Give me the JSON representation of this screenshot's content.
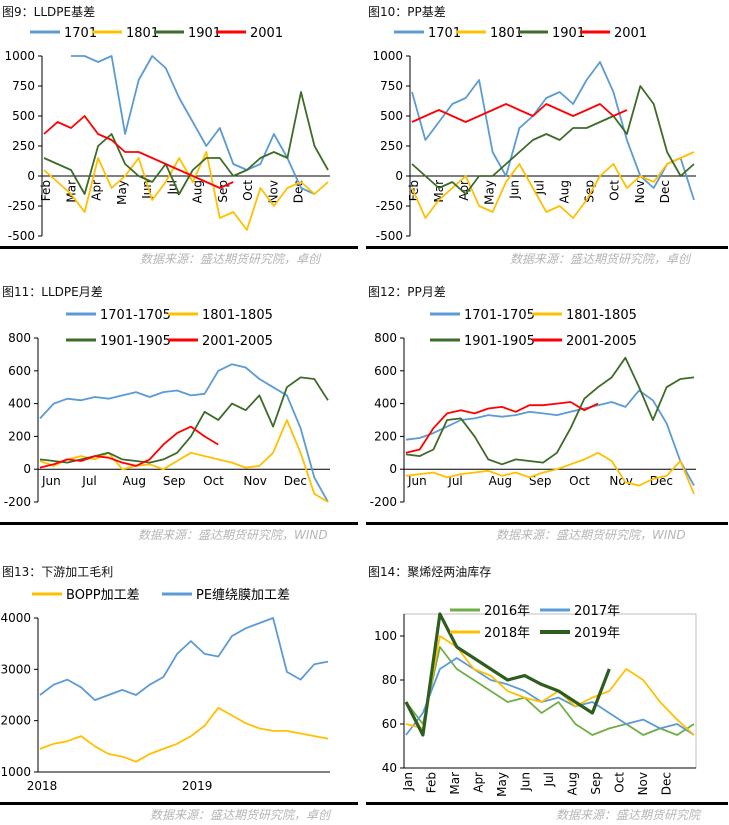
{
  "colors": {
    "blue": "#5b9bd5",
    "yellow": "#ffc000",
    "green": "#3e6b28",
    "red": "#ff0000",
    "lightgreen": "#70ad47",
    "lightblue": "#5b9bd5",
    "darkgreen": "#2e5e1e"
  },
  "panels": [
    {
      "caption": "图9：LLDPE基差",
      "source": "数据来源：盛达期货研究院，卓创"
    },
    {
      "caption": "图10：PP基差",
      "source": "数据来源：盛达期货研究院，卓创"
    },
    {
      "caption": "图11：LLDPE月差",
      "source": "数据来源：盛达期货研究院，WIND"
    },
    {
      "caption": "图12：PP月差",
      "source": "数据来源：盛达期货研究院，WIND"
    },
    {
      "caption": "图13：下游加工毛利",
      "source": "数据来源：盛达期货研究院，卓创"
    },
    {
      "caption": "图14：聚烯烃两油库存",
      "source": "数据来源：盛达期货研究院"
    }
  ],
  "chart_data": [
    {
      "type": "line",
      "ylim": [
        -500,
        1000
      ],
      "yticks": [
        "1000",
        "750",
        "500",
        "250",
        "0",
        "-250",
        "-500"
      ],
      "xticks": [
        "Feb",
        "Mar",
        "Apr",
        "May",
        "Jun",
        "Jul",
        "Aug",
        "Sep",
        "Oct",
        "Nov",
        "Dec"
      ],
      "x_axis_value": 0,
      "legend_rows": [
        [
          "1701",
          "1801",
          "1901",
          "2001"
        ]
      ],
      "series": [
        {
          "name": "1701",
          "values": [
            null,
            null,
            1000,
            1000,
            950,
            1000,
            350,
            800,
            1000,
            900,
            650,
            450,
            250,
            400,
            100,
            50,
            100,
            350,
            150,
            -100,
            -150,
            null
          ]
        },
        {
          "name": "1801",
          "values": [
            50,
            -50,
            -150,
            -300,
            150,
            -100,
            0,
            150,
            -200,
            -50,
            150,
            -50,
            200,
            -350,
            -300,
            -450,
            -100,
            -250,
            -100,
            -50,
            -150,
            -50
          ]
        },
        {
          "name": "1901",
          "values": [
            150,
            100,
            50,
            -150,
            250,
            350,
            100,
            0,
            -50,
            100,
            -150,
            50,
            150,
            150,
            0,
            50,
            150,
            200,
            150,
            700,
            250,
            50
          ]
        },
        {
          "name": "2001",
          "values": [
            350,
            450,
            400,
            500,
            350,
            300,
            200,
            200,
            150,
            100,
            50,
            0,
            -50,
            -100,
            -50,
            null,
            null,
            null,
            null,
            null,
            null,
            null
          ]
        }
      ]
    },
    {
      "type": "line",
      "ylim": [
        -500,
        1000
      ],
      "yticks": [
        "1000",
        "750",
        "500",
        "250",
        "0",
        "-250",
        "-500"
      ],
      "xticks": [
        "Feb",
        "Mar",
        "Apr",
        "May",
        "Jun",
        "Jul",
        "Aug",
        "Sep",
        "Oct",
        "Nov",
        "Dec"
      ],
      "x_axis_value": 0,
      "legend_rows": [
        [
          "1701",
          "1801",
          "1901",
          "2001"
        ]
      ],
      "series": [
        {
          "name": "1701",
          "values": [
            700,
            300,
            450,
            600,
            650,
            800,
            200,
            0,
            400,
            500,
            650,
            700,
            600,
            800,
            950,
            700,
            300,
            0,
            -100,
            100,
            150,
            -200
          ]
        },
        {
          "name": "1801",
          "values": [
            -100,
            -350,
            -200,
            -100,
            0,
            -250,
            -300,
            -50,
            100,
            -100,
            -300,
            -250,
            -350,
            -200,
            0,
            100,
            -100,
            0,
            -50,
            100,
            150,
            200
          ]
        },
        {
          "name": "1901",
          "values": [
            100,
            0,
            -100,
            -50,
            -150,
            0,
            0,
            100,
            200,
            300,
            350,
            300,
            400,
            400,
            450,
            500,
            350,
            750,
            600,
            200,
            0,
            100
          ]
        },
        {
          "name": "2001",
          "values": [
            450,
            500,
            550,
            500,
            450,
            500,
            550,
            600,
            550,
            500,
            600,
            550,
            500,
            550,
            600,
            500,
            550,
            null,
            null,
            null,
            null,
            null
          ]
        }
      ]
    },
    {
      "type": "line",
      "ylim": [
        -200,
        800
      ],
      "yticks": [
        "800",
        "600",
        "400",
        "200",
        "0",
        "-200"
      ],
      "xticks": [
        "Jun",
        "Jul",
        "Aug",
        "Sep",
        "Oct",
        "Nov",
        "Dec"
      ],
      "x_axis_value": 0,
      "legend_rows": [
        [
          "1701-1705",
          "1801-1805"
        ],
        [
          "1901-1905",
          "2001-2005"
        ]
      ],
      "series": [
        {
          "name": "1701-1705",
          "values": [
            310,
            400,
            430,
            420,
            440,
            430,
            450,
            470,
            440,
            470,
            480,
            450,
            460,
            600,
            640,
            620,
            550,
            500,
            450,
            250,
            -50,
            -200
          ]
        },
        {
          "name": "1801-1805",
          "values": [
            50,
            20,
            60,
            80,
            60,
            100,
            0,
            20,
            30,
            0,
            50,
            100,
            80,
            60,
            40,
            10,
            20,
            100,
            300,
            100,
            -150,
            -200
          ]
        },
        {
          "name": "1901-1905",
          "values": [
            60,
            50,
            40,
            60,
            80,
            100,
            60,
            50,
            40,
            60,
            100,
            200,
            350,
            300,
            400,
            360,
            450,
            260,
            500,
            560,
            550,
            420
          ]
        },
        {
          "name": "2001-2005",
          "values": [
            10,
            30,
            60,
            50,
            80,
            70,
            40,
            20,
            60,
            150,
            220,
            260,
            200,
            150,
            null,
            null,
            null,
            null,
            null,
            null,
            null,
            null
          ]
        }
      ]
    },
    {
      "type": "line",
      "ylim": [
        -200,
        800
      ],
      "yticks": [
        "800",
        "600",
        "400",
        "200",
        "0",
        "-200"
      ],
      "xticks": [
        "Jun",
        "Jul",
        "Aug",
        "Sep",
        "Oct",
        "Nov",
        "Dec"
      ],
      "x_axis_value": 0,
      "legend_rows": [
        [
          "1701-1705",
          "1801-1805"
        ],
        [
          "1901-1905",
          "2001-2005"
        ]
      ],
      "series": [
        {
          "name": "1701-1705",
          "values": [
            180,
            190,
            220,
            260,
            300,
            310,
            330,
            320,
            330,
            350,
            340,
            330,
            350,
            370,
            390,
            410,
            380,
            480,
            420,
            280,
            50,
            -100
          ]
        },
        {
          "name": "1801-1805",
          "values": [
            -40,
            -30,
            -20,
            -50,
            -30,
            -20,
            -10,
            -40,
            -20,
            -50,
            -20,
            0,
            30,
            60,
            100,
            50,
            -80,
            -100,
            -60,
            -40,
            50,
            -150
          ]
        },
        {
          "name": "1901-1905",
          "values": [
            90,
            80,
            120,
            300,
            310,
            200,
            60,
            30,
            60,
            50,
            40,
            100,
            250,
            430,
            500,
            560,
            680,
            500,
            300,
            500,
            550,
            560
          ]
        },
        {
          "name": "2001-2005",
          "values": [
            100,
            120,
            250,
            340,
            360,
            340,
            370,
            380,
            350,
            390,
            390,
            400,
            410,
            360,
            400,
            null,
            null,
            null,
            null,
            null,
            null,
            null
          ]
        }
      ]
    },
    {
      "type": "line",
      "ylim": [
        1000,
        4000
      ],
      "yticks": [
        "4000",
        "3000",
        "2000",
        "1000"
      ],
      "xticks": [
        "2018",
        "2019"
      ],
      "xtick_pos": [
        0.0,
        0.55
      ],
      "x_axis_value": 1000,
      "legend_rows": [
        [
          "BOPP加工差",
          "PE缠绕膜加工差"
        ]
      ],
      "series": [
        {
          "name": "BOPP加工差",
          "values": [
            1450,
            1550,
            1600,
            1700,
            1500,
            1350,
            1300,
            1200,
            1350,
            1450,
            1550,
            1700,
            1900,
            2250,
            2100,
            1950,
            1850,
            1800,
            1800,
            1750,
            1700,
            1650
          ]
        },
        {
          "name": "PE缠绕膜加工差",
          "values": [
            2500,
            2700,
            2800,
            2650,
            2400,
            2500,
            2600,
            2500,
            2700,
            2850,
            3300,
            3550,
            3300,
            3250,
            3650,
            3800,
            3900,
            4000,
            2950,
            2800,
            3100,
            3150
          ]
        }
      ]
    },
    {
      "type": "line",
      "ylim": [
        40,
        110
      ],
      "yticks": [
        "100",
        "80",
        "60",
        "40"
      ],
      "xticks": [
        "Jan",
        "Feb",
        "Mar",
        "Apr",
        "May",
        "Jun",
        "Jul",
        "Aug",
        "Sep",
        "Oct",
        "Nov",
        "Dec"
      ],
      "x_axis_value": 40,
      "legend_rows": [
        [
          "2016年",
          "2017年"
        ],
        [
          "2018年",
          "2019年"
        ]
      ],
      "series": [
        {
          "name": "2016年",
          "values": [
            70,
            60,
            95,
            85,
            80,
            75,
            70,
            72,
            65,
            70,
            60,
            55,
            58,
            60,
            55,
            58,
            55,
            60
          ]
        },
        {
          "name": "2017年",
          "values": [
            55,
            65,
            85,
            90,
            85,
            80,
            78,
            75,
            70,
            72,
            68,
            70,
            65,
            60,
            62,
            58,
            60,
            55
          ]
        },
        {
          "name": "2018年",
          "values": [
            60,
            58,
            100,
            95,
            85,
            82,
            75,
            72,
            70,
            75,
            68,
            72,
            75,
            85,
            80,
            70,
            62,
            55
          ]
        },
        {
          "name": "2019年",
          "values": [
            70,
            55,
            110,
            95,
            90,
            85,
            80,
            82,
            78,
            75,
            70,
            65,
            85,
            null,
            null,
            null,
            null,
            null
          ]
        }
      ]
    }
  ]
}
